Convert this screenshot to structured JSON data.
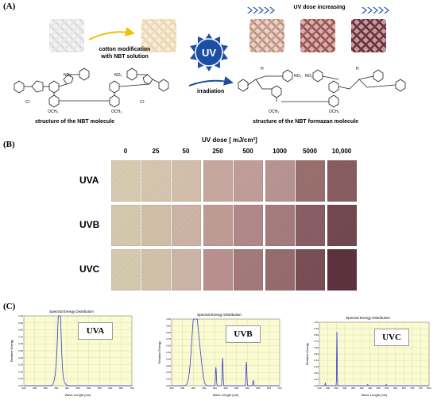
{
  "panel_a": {
    "letter": "(A)",
    "step1_label_line1": "cotton modification",
    "step1_label_line2": "with NBT solution",
    "uv_badge": "UV",
    "irradiation_label": "irradiation",
    "uv_dose_increasing": "UV dose increasing",
    "nbt_caption": "structure of the NBT molecule",
    "formazan_caption": "structure of the NBT formazan molecule",
    "chem_labels": {
      "no2": "NO₂",
      "och3": "OCH₃",
      "cl": "Cl⁻",
      "n": "N",
      "h": "H"
    }
  },
  "panel_b": {
    "letter": "(B)",
    "dose_header": "UV dose [ mJ/cm²]",
    "doses": [
      "0",
      "25",
      "50",
      "250",
      "500",
      "1000",
      "5000",
      "10,000"
    ],
    "rows": [
      {
        "label": "UVA",
        "colors": [
          "#d9cdb3",
          "#d8c8b0",
          "#d5c1ac",
          "#c9a9a0",
          "#c39f9b",
          "#b99694",
          "#9b7170",
          "#8a5d62"
        ]
      },
      {
        "label": "UVB",
        "colors": [
          "#d7cab0",
          "#d3c1ab",
          "#cfb6a6",
          "#c29d98",
          "#b38a89",
          "#a77d7f",
          "#8a5f65",
          "#744952"
        ]
      },
      {
        "label": "UVC",
        "colors": [
          "#d6ccb1",
          "#d4c3ac",
          "#cfb7a8",
          "#bb928f",
          "#a57b7b",
          "#986d70",
          "#7b4f56",
          "#5d3340"
        ]
      }
    ]
  },
  "panel_c": {
    "letter": "(C)",
    "charts": [
      {
        "title": "Spectral Energy Distribution",
        "label": "UVA",
        "xlabel": "Wave Length (nm)",
        "ylabel": "Relative Energy",
        "xlim": [
          200,
          700
        ],
        "ylim": [
          0,
          1.0
        ],
        "xticks": [
          "200",
          "250",
          "300",
          "350",
          "400",
          "450",
          "500",
          "550",
          "600",
          "650",
          "700"
        ],
        "yticks": [
          "0.00",
          "0.10",
          "0.20",
          "0.30",
          "0.40",
          "0.50",
          "0.60",
          "0.70",
          "0.80",
          "0.90",
          "1.00"
        ],
        "peaks": [
          {
            "center": 365,
            "height": 0.98,
            "width": 7
          },
          {
            "center": 356,
            "height": 0.25,
            "width": 10
          },
          {
            "center": 372,
            "height": 0.12,
            "width": 12
          }
        ]
      },
      {
        "title": "Spectral Energy Distribution",
        "label": "UVB",
        "xlabel": "Wave Length (nm)",
        "ylabel": "Relative Energy",
        "xlim": [
          200,
          700
        ],
        "ylim": [
          0,
          1.0
        ],
        "xticks": [
          "200",
          "250",
          "300",
          "350",
          "400",
          "450",
          "500",
          "550",
          "600",
          "650",
          "700"
        ],
        "yticks": [
          "0.00",
          "0.10",
          "0.20",
          "0.30",
          "0.40",
          "0.50",
          "0.60",
          "0.70",
          "0.80",
          "0.90",
          "1.00"
        ],
        "peaks": [
          {
            "center": 312,
            "height": 0.92,
            "width": 14
          },
          {
            "center": 300,
            "height": 0.35,
            "width": 12
          },
          {
            "center": 334,
            "height": 0.22,
            "width": 10
          },
          {
            "center": 405,
            "height": 0.28,
            "width": 2
          },
          {
            "center": 436,
            "height": 0.42,
            "width": 2
          },
          {
            "center": 546,
            "height": 0.36,
            "width": 2
          },
          {
            "center": 578,
            "height": 0.08,
            "width": 2
          }
        ]
      },
      {
        "title": "Spectral Energy Distribution",
        "label": "UVC",
        "xlabel": "Wave Length (nm)",
        "ylabel": "Relative Energy",
        "xlim": [
          150,
          800
        ],
        "ylim": [
          0,
          1.0
        ],
        "xticks": [
          "150",
          "200",
          "250",
          "300",
          "350",
          "400",
          "450",
          "500",
          "550",
          "600",
          "650",
          "700",
          "750",
          "800"
        ],
        "yticks": [
          "0.00",
          "0.10",
          "0.20",
          "0.30",
          "0.40",
          "0.50",
          "0.60",
          "0.70",
          "0.80",
          "0.90",
          "1.00"
        ],
        "peaks": [
          {
            "center": 254,
            "height": 0.85,
            "width": 1.5
          },
          {
            "center": 185,
            "height": 0.05,
            "width": 1.5
          },
          {
            "center": 436,
            "height": 0.02,
            "width": 1.5
          },
          {
            "center": 546,
            "height": 0.02,
            "width": 1.5
          }
        ]
      }
    ]
  }
}
